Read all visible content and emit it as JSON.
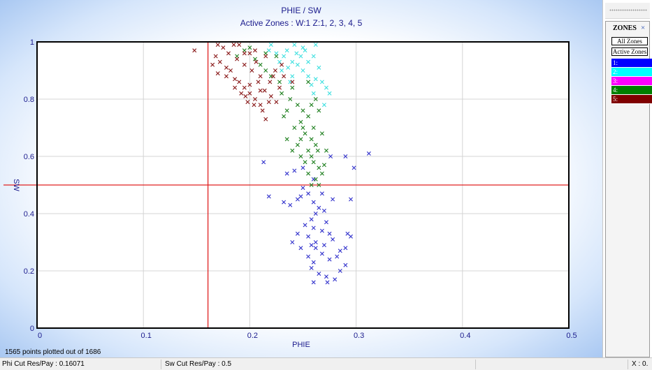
{
  "chart_data": {
    "type": "scatter",
    "title": "PHIE / SW",
    "subtitle": "Active Zones :   W:1 Z:1, 2, 3, 4, 5",
    "xlabel": "PHIE",
    "ylabel": "SW",
    "xlim": [
      0,
      0.5
    ],
    "ylim": [
      0,
      1
    ],
    "x_ticks": [
      0,
      0.1,
      0.2,
      0.3,
      0.4,
      0.5
    ],
    "x_tick_labels": [
      "0",
      "0.1",
      "0.2",
      "0.3",
      "0.4",
      "0.5"
    ],
    "y_ticks": [
      0,
      0.2,
      0.4,
      0.6,
      0.8,
      1
    ],
    "y_tick_labels": [
      "0",
      "0.2",
      "0.4",
      "0.6",
      "0.8",
      "1"
    ],
    "grid": true,
    "marker": "x",
    "cutoffs": {
      "phi": 0.16071,
      "sw": 0.5,
      "color": "#e02020"
    },
    "note": "1565 points plotted out of 1686",
    "series": [
      {
        "name": "1:",
        "color": "#3333cc",
        "points": [
          [
            0.248,
            0.46
          ],
          [
            0.255,
            0.47
          ],
          [
            0.26,
            0.44
          ],
          [
            0.265,
            0.42
          ],
          [
            0.262,
            0.4
          ],
          [
            0.27,
            0.41
          ],
          [
            0.258,
            0.38
          ],
          [
            0.252,
            0.36
          ],
          [
            0.26,
            0.35
          ],
          [
            0.272,
            0.37
          ],
          [
            0.268,
            0.34
          ],
          [
            0.275,
            0.33
          ],
          [
            0.255,
            0.32
          ],
          [
            0.262,
            0.3
          ],
          [
            0.27,
            0.29
          ],
          [
            0.278,
            0.31
          ],
          [
            0.285,
            0.27
          ],
          [
            0.29,
            0.28
          ],
          [
            0.282,
            0.25
          ],
          [
            0.275,
            0.24
          ],
          [
            0.268,
            0.26
          ],
          [
            0.26,
            0.23
          ],
          [
            0.258,
            0.21
          ],
          [
            0.265,
            0.19
          ],
          [
            0.272,
            0.18
          ],
          [
            0.28,
            0.17
          ],
          [
            0.285,
            0.2
          ],
          [
            0.29,
            0.22
          ],
          [
            0.295,
            0.32
          ],
          [
            0.292,
            0.33
          ],
          [
            0.295,
            0.45
          ],
          [
            0.276,
            0.6
          ],
          [
            0.29,
            0.6
          ],
          [
            0.298,
            0.56
          ],
          [
            0.312,
            0.61
          ],
          [
            0.218,
            0.46
          ],
          [
            0.245,
            0.45
          ],
          [
            0.238,
            0.43
          ],
          [
            0.232,
            0.44
          ],
          [
            0.235,
            0.54
          ],
          [
            0.26,
            0.52
          ],
          [
            0.25,
            0.49
          ],
          [
            0.242,
            0.55
          ],
          [
            0.213,
            0.58
          ],
          [
            0.248,
            0.28
          ],
          [
            0.24,
            0.3
          ],
          [
            0.262,
            0.28
          ],
          [
            0.255,
            0.25
          ],
          [
            0.245,
            0.33
          ],
          [
            0.278,
            0.45
          ],
          [
            0.268,
            0.47
          ],
          [
            0.25,
            0.56
          ],
          [
            0.258,
            0.29
          ],
          [
            0.26,
            0.16
          ],
          [
            0.273,
            0.16
          ]
        ]
      },
      {
        "name": "2:",
        "color": "#40e0e0",
        "points": [
          [
            0.22,
            0.99
          ],
          [
            0.225,
            0.96
          ],
          [
            0.232,
            0.95
          ],
          [
            0.24,
            0.93
          ],
          [
            0.236,
            0.91
          ],
          [
            0.245,
            0.92
          ],
          [
            0.25,
            0.9
          ],
          [
            0.255,
            0.88
          ],
          [
            0.262,
            0.87
          ],
          [
            0.268,
            0.86
          ],
          [
            0.272,
            0.84
          ],
          [
            0.258,
            0.85
          ],
          [
            0.24,
            0.88
          ],
          [
            0.228,
            0.93
          ],
          [
            0.235,
            0.97
          ],
          [
            0.242,
            0.99
          ],
          [
            0.25,
            0.98
          ],
          [
            0.26,
            0.95
          ],
          [
            0.255,
            0.93
          ],
          [
            0.23,
            0.9
          ],
          [
            0.275,
            0.82
          ],
          [
            0.27,
            0.78
          ],
          [
            0.26,
            0.82
          ],
          [
            0.248,
            0.95
          ],
          [
            0.265,
            0.91
          ],
          [
            0.252,
            0.97
          ],
          [
            0.238,
            0.86
          ],
          [
            0.244,
            0.96
          ],
          [
            0.218,
            0.97
          ],
          [
            0.262,
            0.99
          ]
        ]
      },
      {
        "name": "3:",
        "color": "#d020d0",
        "points": []
      },
      {
        "name": "4:",
        "color": "#208020",
        "points": [
          [
            0.23,
            0.82
          ],
          [
            0.238,
            0.8
          ],
          [
            0.245,
            0.78
          ],
          [
            0.25,
            0.76
          ],
          [
            0.255,
            0.74
          ],
          [
            0.248,
            0.72
          ],
          [
            0.26,
            0.7
          ],
          [
            0.252,
            0.68
          ],
          [
            0.258,
            0.66
          ],
          [
            0.262,
            0.64
          ],
          [
            0.255,
            0.62
          ],
          [
            0.248,
            0.6
          ],
          [
            0.26,
            0.58
          ],
          [
            0.265,
            0.56
          ],
          [
            0.268,
            0.54
          ],
          [
            0.262,
            0.52
          ],
          [
            0.265,
            0.5
          ],
          [
            0.24,
            0.62
          ],
          [
            0.235,
            0.66
          ],
          [
            0.245,
            0.64
          ],
          [
            0.25,
            0.7
          ],
          [
            0.258,
            0.78
          ],
          [
            0.262,
            0.8
          ],
          [
            0.24,
            0.84
          ],
          [
            0.228,
            0.86
          ],
          [
            0.22,
            0.88
          ],
          [
            0.215,
            0.9
          ],
          [
            0.21,
            0.92
          ],
          [
            0.205,
            0.94
          ],
          [
            0.195,
            0.97
          ],
          [
            0.188,
            0.95
          ],
          [
            0.2,
            0.98
          ],
          [
            0.232,
            0.74
          ],
          [
            0.242,
            0.7
          ],
          [
            0.252,
            0.58
          ],
          [
            0.258,
            0.6
          ],
          [
            0.264,
            0.62
          ],
          [
            0.235,
            0.76
          ],
          [
            0.255,
            0.54
          ],
          [
            0.248,
            0.66
          ],
          [
            0.27,
            0.57
          ],
          [
            0.225,
            0.95
          ],
          [
            0.215,
            0.96
          ],
          [
            0.255,
            0.86
          ],
          [
            0.265,
            0.76
          ],
          [
            0.268,
            0.68
          ],
          [
            0.272,
            0.62
          ],
          [
            0.258,
            0.5
          ]
        ]
      },
      {
        "name": "5:",
        "color": "#8a1a1a",
        "points": [
          [
            0.148,
            0.97
          ],
          [
            0.165,
            0.92
          ],
          [
            0.17,
            0.89
          ],
          [
            0.178,
            0.88
          ],
          [
            0.182,
            0.9
          ],
          [
            0.186,
            0.87
          ],
          [
            0.19,
            0.86
          ],
          [
            0.195,
            0.84
          ],
          [
            0.2,
            0.82
          ],
          [
            0.205,
            0.8
          ],
          [
            0.21,
            0.78
          ],
          [
            0.198,
            0.79
          ],
          [
            0.192,
            0.82
          ],
          [
            0.186,
            0.84
          ],
          [
            0.2,
            0.85
          ],
          [
            0.208,
            0.86
          ],
          [
            0.214,
            0.83
          ],
          [
            0.22,
            0.81
          ],
          [
            0.225,
            0.79
          ],
          [
            0.21,
            0.88
          ],
          [
            0.202,
            0.9
          ],
          [
            0.195,
            0.92
          ],
          [
            0.188,
            0.94
          ],
          [
            0.18,
            0.96
          ],
          [
            0.175,
            0.98
          ],
          [
            0.185,
            0.99
          ],
          [
            0.195,
            0.96
          ],
          [
            0.205,
            0.97
          ],
          [
            0.215,
            0.95
          ],
          [
            0.172,
            0.93
          ],
          [
            0.178,
            0.91
          ],
          [
            0.168,
            0.95
          ],
          [
            0.222,
            0.88
          ],
          [
            0.228,
            0.84
          ],
          [
            0.218,
            0.79
          ],
          [
            0.212,
            0.76
          ],
          [
            0.204,
            0.78
          ],
          [
            0.196,
            0.81
          ],
          [
            0.224,
            0.9
          ],
          [
            0.23,
            0.92
          ],
          [
            0.219,
            0.86
          ],
          [
            0.21,
            0.83
          ],
          [
            0.206,
            0.93
          ],
          [
            0.2,
            0.96
          ],
          [
            0.19,
            0.99
          ],
          [
            0.17,
            0.99
          ],
          [
            0.232,
            0.88
          ],
          [
            0.24,
            0.86
          ],
          [
            0.215,
            0.73
          ]
        ]
      }
    ]
  },
  "legend": {
    "title": "ZONES",
    "close_glyph": "×",
    "all_zones_label": "All Zones",
    "active_zones_label": "Active Zones",
    "zones": [
      {
        "label": "1:",
        "color": "#0000ff"
      },
      {
        "label": "2:",
        "color": "#00ffff"
      },
      {
        "label": "3:",
        "color": "#ff00ff"
      },
      {
        "label": "4:",
        "color": "#008000"
      },
      {
        "label": "5:",
        "color": "#800000"
      }
    ]
  },
  "status": {
    "phi_cut": "Phi Cut Res/Pay : 0.16071",
    "sw_cut": "Sw Cut Res/Pay : 0.5",
    "x_readout": "X : 0."
  }
}
